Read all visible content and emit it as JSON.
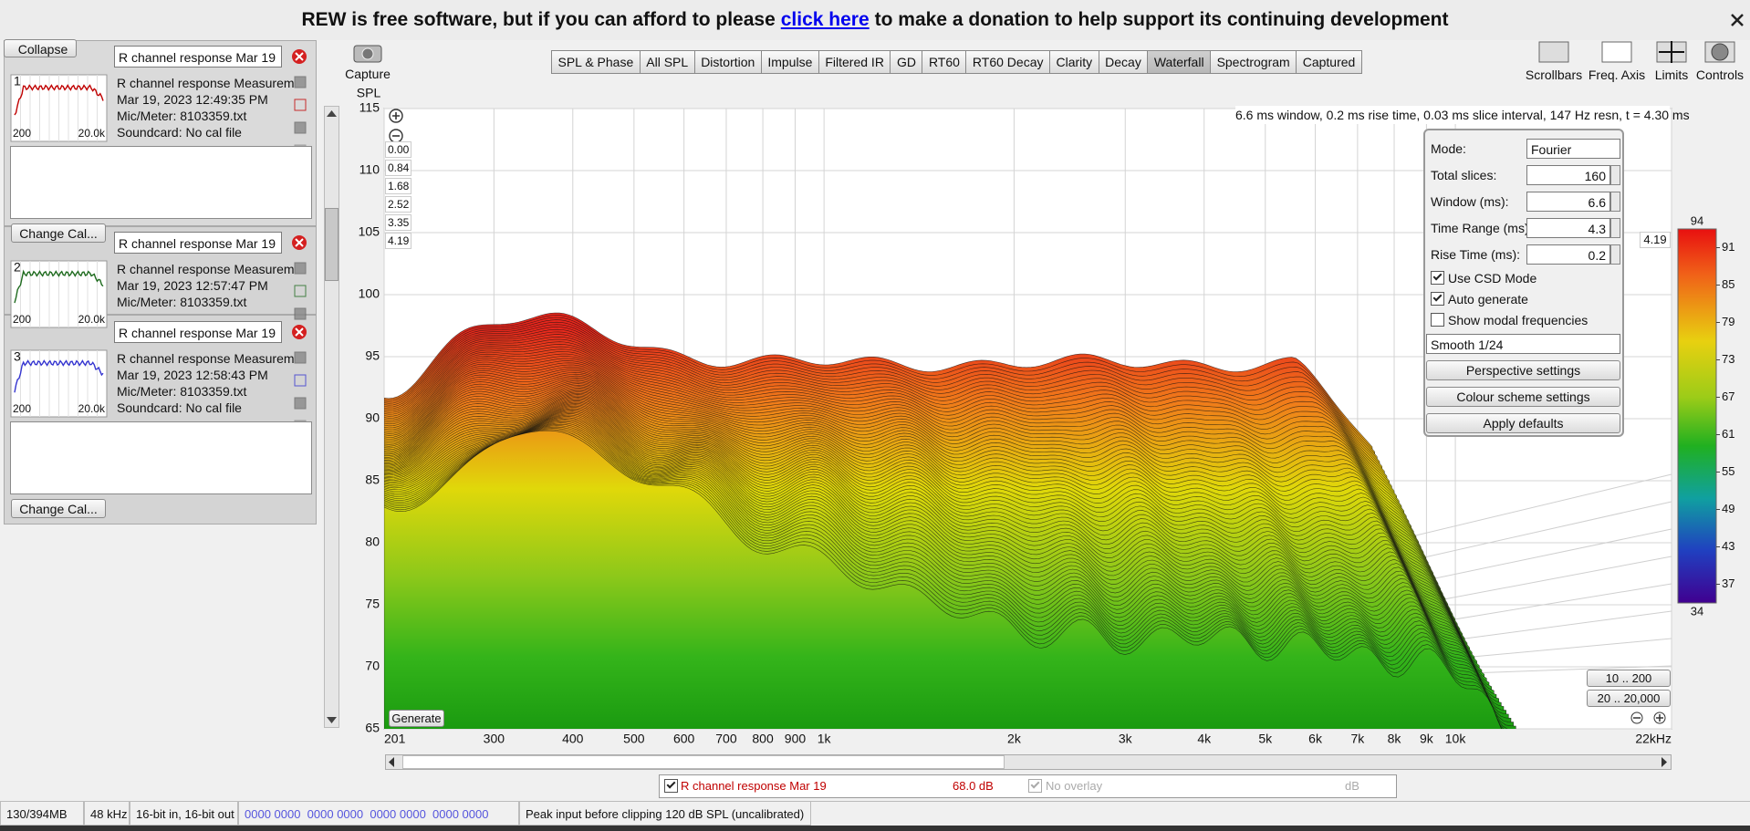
{
  "banner": {
    "text": "REW is free software, but if you can afford to please",
    "link": "click here",
    "text_end": "to make a donation to help support its continuing development"
  },
  "sidebar": {
    "collapse": "Collapse",
    "measurements": [
      {
        "number": "1",
        "name": "R channel response Mar 19",
        "title": "R channel response Measurem",
        "date": "Mar 19, 2023 12:49:35 PM",
        "mic": "Mic/Meter: 8103359.txt",
        "soundcard": "Soundcard: No cal file",
        "thumb_low": "200",
        "thumb_high": "20.0k",
        "change_cal": "Change Cal...",
        "color": "#c00000"
      },
      {
        "number": "2",
        "name": "R channel response Mar 19",
        "title": "R channel response Measurem",
        "date": "Mar 19, 2023 12:57:47 PM",
        "mic": "Mic/Meter: 8103359.txt",
        "thumb_low": "200",
        "thumb_high": "20.0k",
        "color": "#1f6b1f"
      },
      {
        "number": "3",
        "name": "R channel response Mar 19",
        "title": "R channel response Measurem",
        "date": "Mar 19, 2023 12:58:43 PM",
        "mic": "Mic/Meter: 8103359.txt",
        "soundcard": "Soundcard: No cal file",
        "thumb_low": "200",
        "thumb_high": "20.0k",
        "change_cal": "Change Cal...",
        "color": "#3535d0"
      }
    ]
  },
  "toolbar": {
    "capture": "Capture",
    "tabs": [
      "SPL & Phase",
      "All SPL",
      "Distortion",
      "Impulse",
      "Filtered IR",
      "GD",
      "RT60",
      "RT60 Decay",
      "Clarity",
      "Decay",
      "Waterfall",
      "Spectrogram",
      "Captured"
    ],
    "active_tab": 10,
    "tools": [
      "Scrollbars",
      "Freq. Axis",
      "Limits",
      "Controls"
    ]
  },
  "plot": {
    "y_label": "SPL",
    "ylim": [
      65,
      115
    ],
    "yticks": [
      115,
      110,
      105,
      100,
      95,
      90,
      85,
      80,
      75,
      70,
      65
    ],
    "xlim": [
      201,
      22000
    ],
    "log_x": true,
    "xticks": [
      201,
      300,
      400,
      500,
      600,
      700,
      800,
      900,
      {
        "value": 1000,
        "label": "1k"
      },
      {
        "value": 2000,
        "label": "2k"
      },
      {
        "value": 3000,
        "label": "3k"
      },
      {
        "value": 4000,
        "label": "4k"
      },
      {
        "value": 5000,
        "label": "5k"
      },
      {
        "value": 6000,
        "label": "6k"
      },
      {
        "value": 7000,
        "label": "7k"
      },
      {
        "value": 8000,
        "label": "8k"
      },
      {
        "value": 9000,
        "label": "9k"
      },
      {
        "value": 10000,
        "label": "10k"
      },
      {
        "value": 22000,
        "label": "22kHz"
      }
    ],
    "grid": true,
    "info": "6.6 ms window, 0.2 ms rise time, 0.03 ms slice interval, 147 Hz resn, t = 4.30 ms",
    "time_labels": [
      "0.00",
      "0.84",
      "1.68",
      "2.52",
      "3.35",
      "4.19"
    ],
    "time_end": "4.19",
    "generate": "Generate",
    "ranges": [
      "10 .. 200",
      "20 .. 20,000"
    ],
    "colour_scale": {
      "zlim": [
        34,
        94
      ],
      "ticks": [
        94,
        91,
        85,
        79,
        73,
        67,
        61,
        55,
        49,
        43,
        37,
        34
      ]
    }
  },
  "controls": {
    "mode_label": "Mode:",
    "mode": "Fourier",
    "fields": [
      {
        "label": "Total slices:",
        "value": "160"
      },
      {
        "label": "Window (ms):",
        "value": "6.6"
      },
      {
        "label": "Time Range (ms):",
        "value": "4.3"
      },
      {
        "label": "Rise Time (ms):",
        "value": "0.2"
      }
    ],
    "checks": [
      {
        "label": "Use CSD Mode",
        "checked": true
      },
      {
        "label": "Auto generate",
        "checked": true
      },
      {
        "label": "Show modal frequencies",
        "checked": false
      }
    ],
    "smoothing": "Smooth 1/24",
    "buttons": [
      "Perspective settings",
      "Colour scheme settings",
      "Apply defaults"
    ]
  },
  "legend": {
    "name": "R channel response Mar 19",
    "value": "68.0 dB",
    "overlay": "No overlay",
    "overlay_unit": "dB",
    "color": "#c00000"
  },
  "status": [
    "130/394MB",
    "48 kHz",
    "16-bit in, 16-bit out",
    "0000 0000  0000 0000  0000 0000  0000 0000",
    "Peak input before clipping 120 dB SPL (uncalibrated)"
  ]
}
